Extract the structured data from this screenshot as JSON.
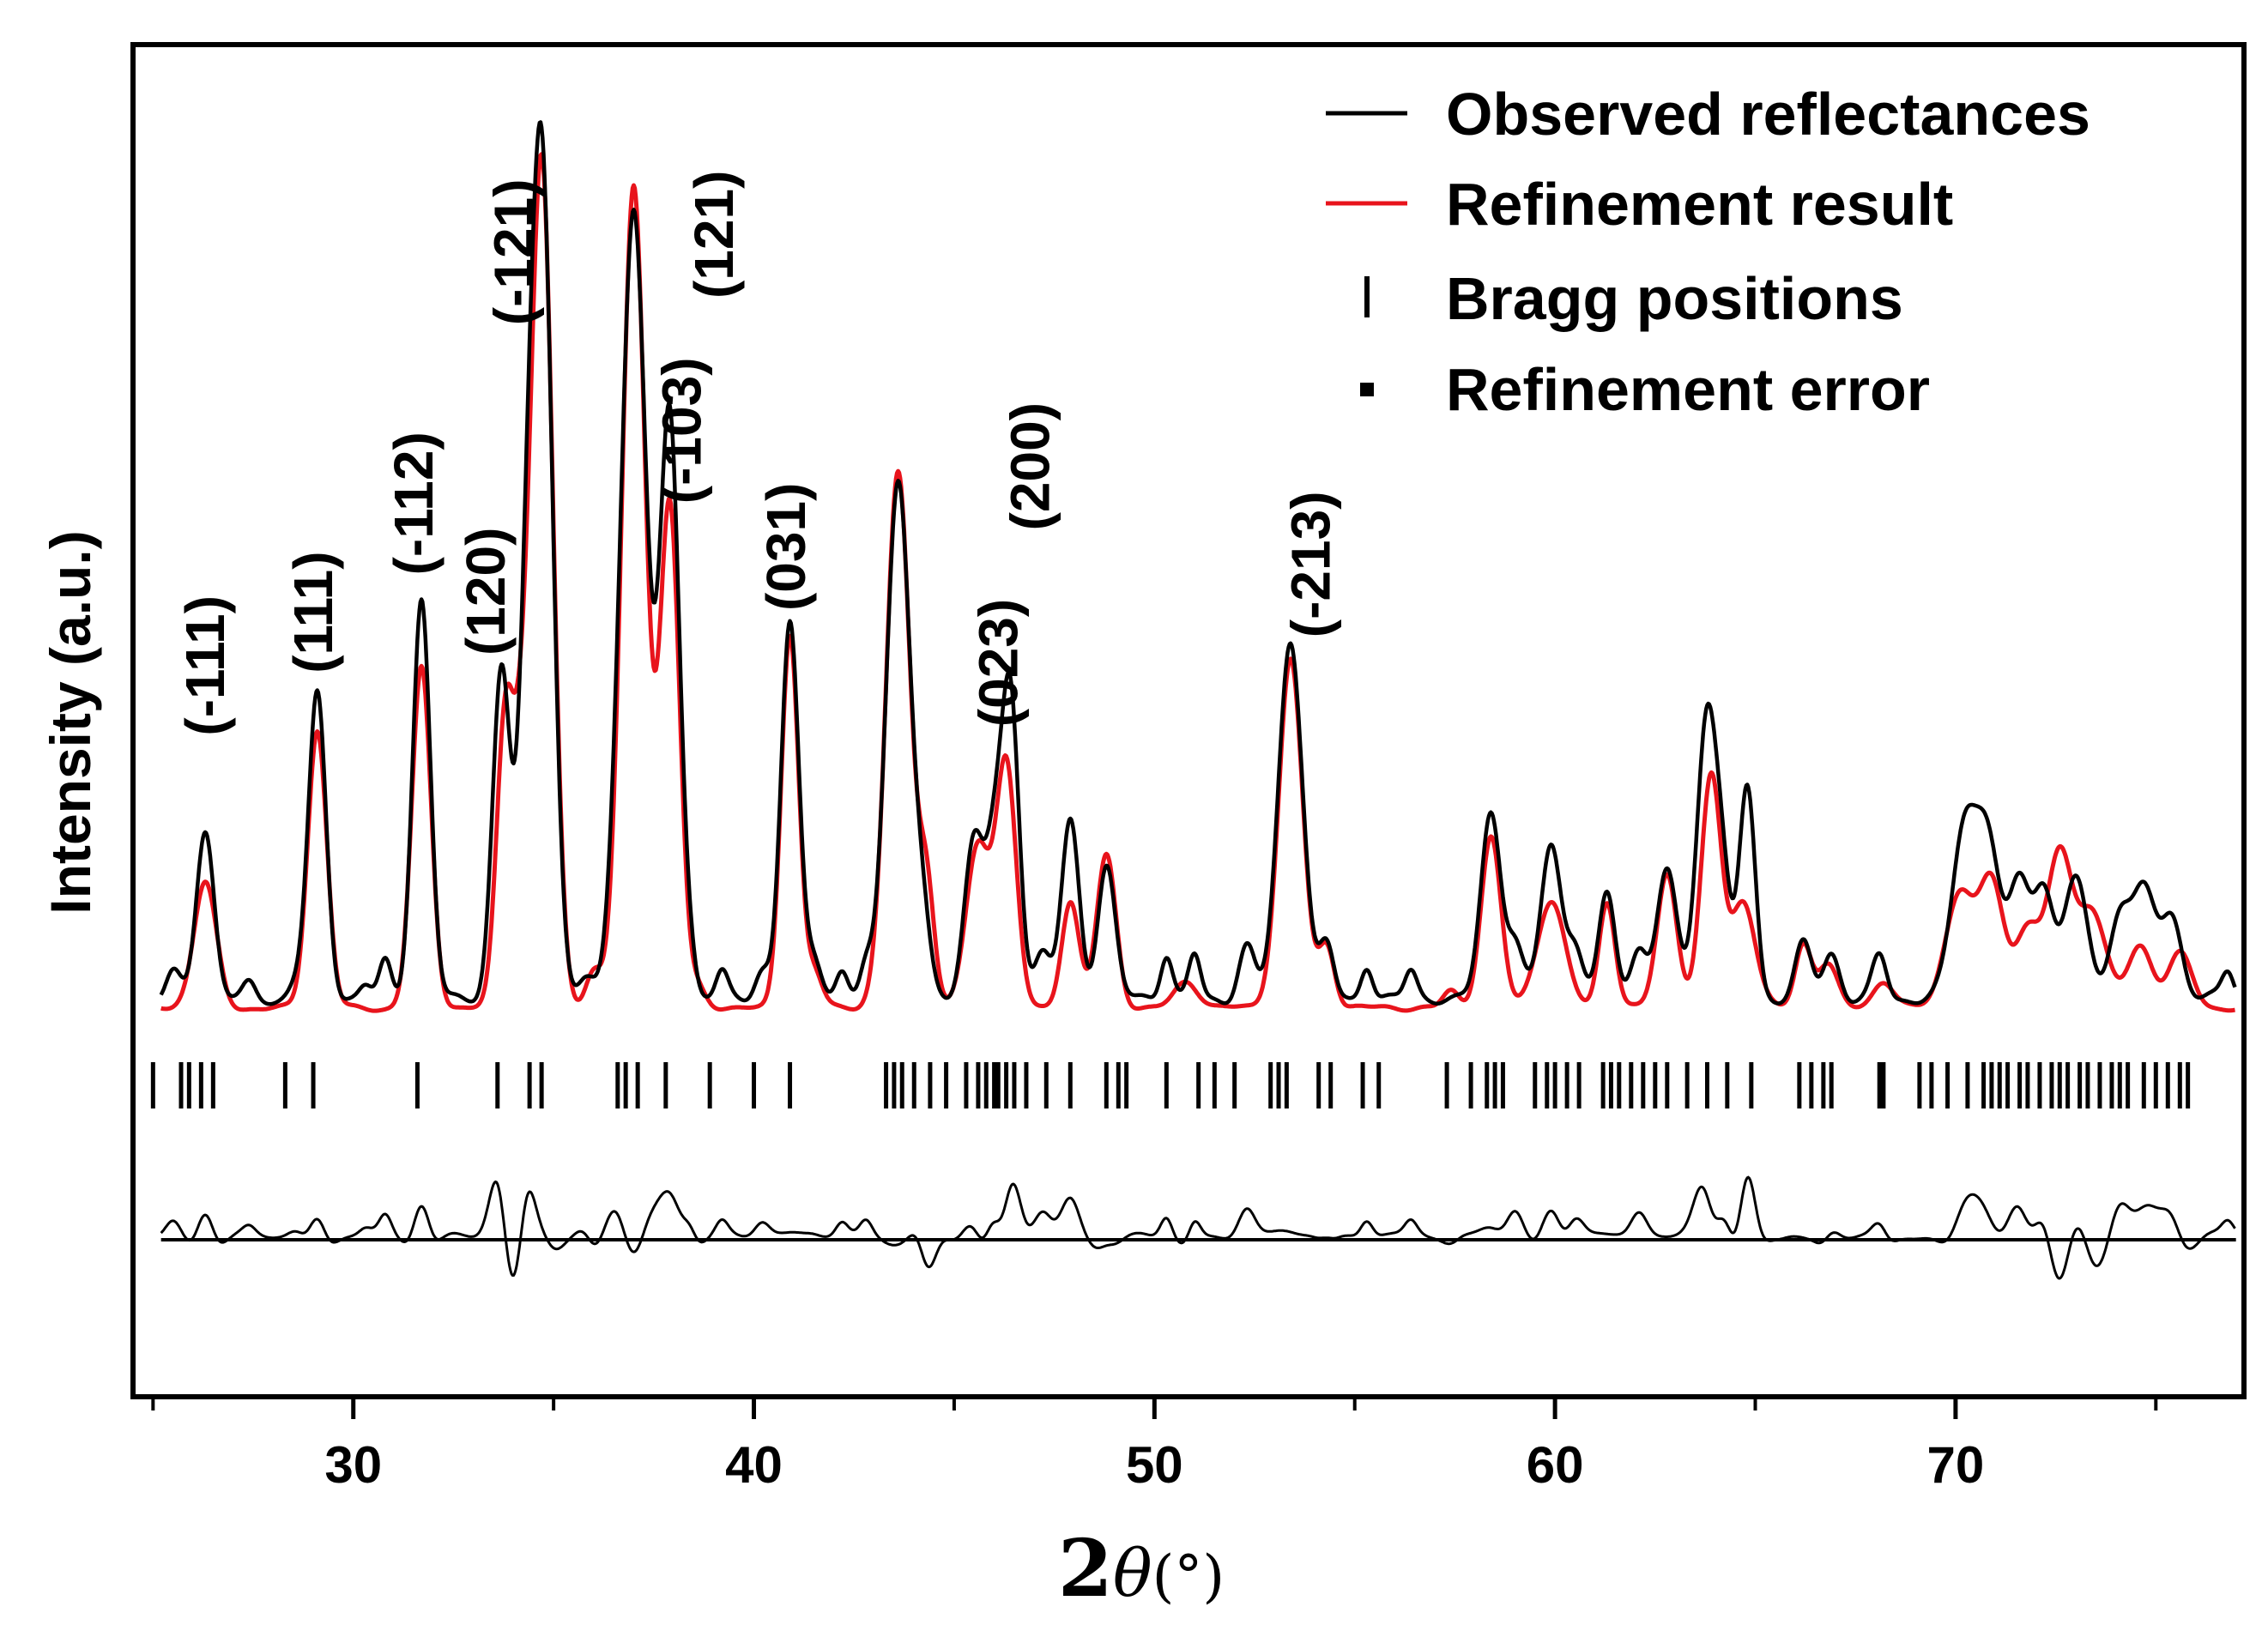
{
  "chart_data": {
    "type": "line",
    "title": "",
    "xlabel": "2θ(°)",
    "xlabel_parts": {
      "prefix": "2",
      "symbol": "θ",
      "unit": "(°)"
    },
    "ylabel": "Intensity (a.u.)",
    "xlim": [
      24.5,
      77.2
    ],
    "xticks": [
      30,
      40,
      50,
      60,
      70
    ],
    "xticks_minor": [
      25,
      35,
      45,
      55,
      65,
      75
    ],
    "y_axis_ticks": false,
    "legend": {
      "position": "top-right",
      "entries": [
        {
          "label": "Observed reflectances",
          "style": "line",
          "color": "#000000"
        },
        {
          "label": "Refinement result",
          "style": "line",
          "color": "#e8141c"
        },
        {
          "label": "Bragg positions",
          "style": "tick",
          "color": "#000000"
        },
        {
          "label": "Refinement error",
          "style": "dot",
          "color": "#000000"
        }
      ]
    },
    "peak_labels": [
      {
        "text": "(-111)",
        "x": 26.3,
        "y": 31
      },
      {
        "text": "(111)",
        "x": 29.0,
        "y": 38
      },
      {
        "text": "(-112)",
        "x": 31.5,
        "y": 49
      },
      {
        "text": "(120)",
        "x": 33.3,
        "y": 40
      },
      {
        "text": "(-121)",
        "x": 34.0,
        "y": 77
      },
      {
        "text": "(-103)",
        "x": 38.2,
        "y": 57
      },
      {
        "text": "(121)",
        "x": 39.0,
        "y": 80
      },
      {
        "text": "(031)",
        "x": 40.8,
        "y": 45
      },
      {
        "text": "(023)",
        "x": 46.1,
        "y": 32
      },
      {
        "text": "(200)",
        "x": 46.9,
        "y": 54
      },
      {
        "text": "(-213)",
        "x": 53.9,
        "y": 42
      }
    ],
    "series": [
      {
        "name": "Observed reflectances",
        "color": "#000000",
        "baseline": 1.5,
        "noise": 0.8,
        "peaks": [
          [
            25.5,
            3,
            0.18
          ],
          [
            26.3,
            19,
            0.22
          ],
          [
            27.4,
            1.5,
            0.15
          ],
          [
            28.6,
            2,
            0.2
          ],
          [
            29.1,
            34,
            0.22
          ],
          [
            30.3,
            1.5,
            0.15
          ],
          [
            30.8,
            4,
            0.15
          ],
          [
            31.7,
            45,
            0.22
          ],
          [
            33.7,
            37,
            0.22
          ],
          [
            34.3,
            25,
            0.2
          ],
          [
            34.7,
            95,
            0.27
          ],
          [
            35.8,
            2,
            0.2
          ],
          [
            36.5,
            3,
            0.2
          ],
          [
            37.0,
            88,
            0.32
          ],
          [
            37.9,
            65,
            0.25
          ],
          [
            38.4,
            3,
            0.15
          ],
          [
            39.2,
            3,
            0.15
          ],
          [
            40.2,
            3,
            0.18
          ],
          [
            40.9,
            42,
            0.22
          ],
          [
            41.5,
            5,
            0.2
          ],
          [
            42.2,
            3,
            0.15
          ],
          [
            42.8,
            3,
            0.15
          ],
          [
            43.6,
            58,
            0.3
          ],
          [
            44.2,
            8,
            0.2
          ],
          [
            45.5,
            18,
            0.25
          ],
          [
            46.0,
            14,
            0.2
          ],
          [
            46.4,
            34,
            0.22
          ],
          [
            47.2,
            5,
            0.2
          ],
          [
            47.9,
            20,
            0.22
          ],
          [
            48.8,
            15,
            0.22
          ],
          [
            50.3,
            5,
            0.15
          ],
          [
            51.0,
            5,
            0.15
          ],
          [
            52.3,
            6,
            0.2
          ],
          [
            53.4,
            40,
            0.3
          ],
          [
            54.3,
            6,
            0.18
          ],
          [
            55.3,
            4,
            0.15
          ],
          [
            56.4,
            3,
            0.15
          ],
          [
            58.4,
            21,
            0.25
          ],
          [
            59.0,
            6,
            0.2
          ],
          [
            59.9,
            17,
            0.25
          ],
          [
            60.5,
            6,
            0.2
          ],
          [
            61.3,
            12,
            0.2
          ],
          [
            62.1,
            6,
            0.2
          ],
          [
            62.8,
            14,
            0.25
          ],
          [
            63.8,
            32,
            0.25
          ],
          [
            64.2,
            10,
            0.2
          ],
          [
            64.8,
            24,
            0.2
          ],
          [
            66.2,
            6,
            0.2
          ],
          [
            66.9,
            5,
            0.2
          ],
          [
            68.1,
            5,
            0.18
          ],
          [
            70.2,
            18,
            0.3
          ],
          [
            70.8,
            18,
            0.3
          ],
          [
            71.6,
            13,
            0.25
          ],
          [
            72.2,
            12,
            0.25
          ],
          [
            73.0,
            13,
            0.3
          ],
          [
            74.1,
            9,
            0.25
          ],
          [
            74.7,
            12,
            0.3
          ],
          [
            75.4,
            9,
            0.25
          ],
          [
            76.8,
            3,
            0.15
          ]
        ]
      },
      {
        "name": "Refinement result",
        "color": "#e8141c",
        "baseline": 0.5,
        "noise": 0.4,
        "peaks": [
          [
            26.3,
            14,
            0.28
          ],
          [
            29.1,
            31,
            0.24
          ],
          [
            31.7,
            38,
            0.24
          ],
          [
            33.8,
            33,
            0.22
          ],
          [
            34.2,
            16,
            0.2
          ],
          [
            34.7,
            95,
            0.28
          ],
          [
            36.0,
            4,
            0.2
          ],
          [
            37.0,
            92,
            0.3
          ],
          [
            37.9,
            56,
            0.25
          ],
          [
            38.6,
            2,
            0.2
          ],
          [
            40.9,
            42,
            0.22
          ],
          [
            41.5,
            4,
            0.2
          ],
          [
            43.6,
            60,
            0.3
          ],
          [
            44.3,
            14,
            0.2
          ],
          [
            45.6,
            18,
            0.3
          ],
          [
            46.3,
            27,
            0.25
          ],
          [
            47.9,
            12,
            0.22
          ],
          [
            48.8,
            17,
            0.24
          ],
          [
            50.8,
            3,
            0.3
          ],
          [
            53.4,
            39,
            0.3
          ],
          [
            54.3,
            7,
            0.2
          ],
          [
            57.4,
            2,
            0.2
          ],
          [
            58.4,
            19,
            0.25
          ],
          [
            59.9,
            12,
            0.35
          ],
          [
            61.3,
            12,
            0.2
          ],
          [
            62.8,
            15,
            0.25
          ],
          [
            63.9,
            26,
            0.25
          ],
          [
            64.7,
            12,
            0.3
          ],
          [
            66.2,
            7,
            0.2
          ],
          [
            66.8,
            5,
            0.25
          ],
          [
            68.2,
            3,
            0.25
          ],
          [
            70.1,
            13,
            0.35
          ],
          [
            70.9,
            14,
            0.3
          ],
          [
            71.8,
            9,
            0.3
          ],
          [
            72.6,
            17,
            0.3
          ],
          [
            73.4,
            11,
            0.35
          ],
          [
            74.6,
            7,
            0.3
          ],
          [
            75.6,
            6,
            0.3
          ]
        ]
      }
    ],
    "bragg_positions": [
      25.0,
      25.7,
      25.9,
      26.2,
      26.5,
      28.3,
      29.0,
      31.6,
      33.6,
      34.4,
      34.7,
      36.6,
      36.8,
      37.1,
      37.8,
      38.9,
      40.0,
      40.9,
      43.3,
      43.5,
      43.7,
      44.0,
      44.4,
      44.8,
      45.3,
      45.6,
      45.8,
      46.0,
      46.1,
      46.3,
      46.5,
      46.8,
      47.3,
      47.9,
      48.8,
      49.1,
      49.3,
      50.3,
      51.1,
      51.5,
      52.0,
      52.9,
      53.1,
      53.3,
      54.1,
      54.4,
      55.2,
      55.6,
      57.3,
      57.9,
      58.3,
      58.5,
      58.7,
      59.5,
      59.8,
      60.0,
      60.3,
      60.6,
      61.2,
      61.4,
      61.6,
      61.9,
      62.2,
      62.5,
      62.8,
      63.3,
      63.8,
      64.3,
      64.9,
      66.1,
      66.4,
      66.7,
      66.9,
      68.1,
      68.2,
      69.1,
      69.4,
      69.8,
      70.3,
      70.7,
      70.9,
      71.1,
      71.3,
      71.6,
      71.8,
      72.1,
      72.4,
      72.6,
      72.8,
      73.1,
      73.3,
      73.6,
      73.9,
      74.1,
      74.3,
      74.7,
      75.0,
      75.3,
      75.6,
      75.8
    ],
    "difference_zero_level": true
  }
}
